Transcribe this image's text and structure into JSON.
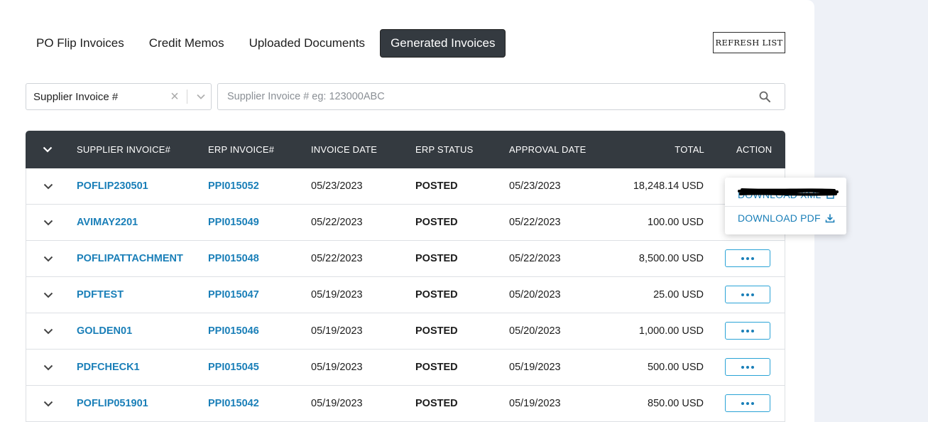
{
  "tabs": [
    {
      "label": "PO Flip Invoices",
      "active": false
    },
    {
      "label": "Credit Memos",
      "active": false
    },
    {
      "label": "Uploaded Documents",
      "active": false
    },
    {
      "label": "Generated Invoices",
      "active": true
    }
  ],
  "refresh_label": "REFRESH LIST",
  "filter": {
    "selected": "Supplier Invoice #",
    "clear_glyph": "×",
    "search_placeholder": "Supplier Invoice # eg: 123000ABC",
    "search_value": ""
  },
  "table": {
    "headers": {
      "supplier_invoice": "SUPPLIER INVOICE#",
      "erp_invoice": "ERP INVOICE#",
      "invoice_date": "INVOICE DATE",
      "erp_status": "ERP STATUS",
      "approval_date": "APPROVAL DATE",
      "total": "TOTAL",
      "action": "ACTION"
    },
    "rows": [
      {
        "supplier_invoice": "POFLIP230501",
        "erp_invoice": "PPI015052",
        "invoice_date": "05/23/2023",
        "erp_status": "POSTED",
        "approval_date": "05/23/2023",
        "total": "18,248.14 USD"
      },
      {
        "supplier_invoice": "AVIMAY2201",
        "erp_invoice": "PPI015049",
        "invoice_date": "05/22/2023",
        "erp_status": "POSTED",
        "approval_date": "05/22/2023",
        "total": "100.00 USD"
      },
      {
        "supplier_invoice": "POFLIPATTACHMENT",
        "erp_invoice": "PPI015048",
        "invoice_date": "05/22/2023",
        "erp_status": "POSTED",
        "approval_date": "05/22/2023",
        "total": "8,500.00 USD"
      },
      {
        "supplier_invoice": "PDFTEST",
        "erp_invoice": "PPI015047",
        "invoice_date": "05/19/2023",
        "erp_status": "POSTED",
        "approval_date": "05/20/2023",
        "total": "25.00 USD"
      },
      {
        "supplier_invoice": "GOLDEN01",
        "erp_invoice": "PPI015046",
        "invoice_date": "05/19/2023",
        "erp_status": "POSTED",
        "approval_date": "05/20/2023",
        "total": "1,000.00 USD"
      },
      {
        "supplier_invoice": "PDFCHECK1",
        "erp_invoice": "PPI015045",
        "invoice_date": "05/19/2023",
        "erp_status": "POSTED",
        "approval_date": "05/19/2023",
        "total": "500.00 USD"
      },
      {
        "supplier_invoice": "POFLIP051901",
        "erp_invoice": "PPI015042",
        "invoice_date": "05/19/2023",
        "erp_status": "POSTED",
        "approval_date": "05/19/2023",
        "total": "850.00 USD"
      }
    ]
  },
  "action_menu": {
    "item1_label": "DOWNLOAD XML",
    "item1_redacted": true,
    "item2_label": "DOWNLOAD PDF"
  },
  "colors": {
    "header_bg": "#343a40",
    "link": "#1a7fb8",
    "page_bg": "#eef1f7"
  }
}
